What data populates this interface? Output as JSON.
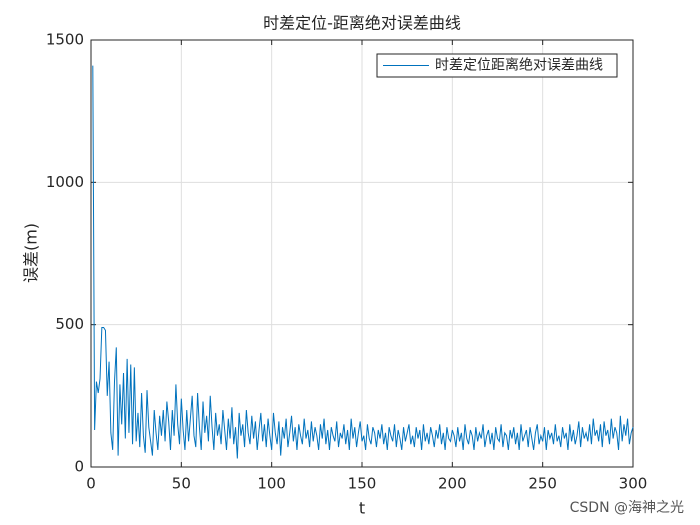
{
  "chart_data": {
    "type": "line",
    "title": "时差定位-距离绝对误差曲线",
    "xlabel": "t",
    "ylabel": "误差(m)",
    "watermark": "CSDN @海神之光",
    "xlim": [
      0,
      300
    ],
    "xticks": [
      0,
      50,
      100,
      150,
      200,
      250,
      300
    ],
    "ylim": [
      0,
      1500
    ],
    "yticks": [
      0,
      500,
      1000,
      1500
    ],
    "grid": true,
    "legend": "northeast",
    "x": [
      1,
      2,
      3,
      4,
      5,
      6,
      7,
      8,
      9,
      10,
      11,
      12,
      13,
      14,
      15,
      16,
      17,
      18,
      19,
      20,
      21,
      22,
      23,
      24,
      25,
      26,
      27,
      28,
      29,
      30,
      31,
      32,
      33,
      34,
      35,
      36,
      37,
      38,
      39,
      40,
      41,
      42,
      43,
      44,
      45,
      46,
      47,
      48,
      49,
      50,
      51,
      52,
      53,
      54,
      55,
      56,
      57,
      58,
      59,
      60,
      61,
      62,
      63,
      64,
      65,
      66,
      67,
      68,
      69,
      70,
      71,
      72,
      73,
      74,
      75,
      76,
      77,
      78,
      79,
      80,
      81,
      82,
      83,
      84,
      85,
      86,
      87,
      88,
      89,
      90,
      91,
      92,
      93,
      94,
      95,
      96,
      97,
      98,
      99,
      100,
      101,
      102,
      103,
      104,
      105,
      106,
      107,
      108,
      109,
      110,
      111,
      112,
      113,
      114,
      115,
      116,
      117,
      118,
      119,
      120,
      121,
      122,
      123,
      124,
      125,
      126,
      127,
      128,
      129,
      130,
      131,
      132,
      133,
      134,
      135,
      136,
      137,
      138,
      139,
      140,
      141,
      142,
      143,
      144,
      145,
      146,
      147,
      148,
      149,
      150,
      151,
      152,
      153,
      154,
      155,
      156,
      157,
      158,
      159,
      160,
      161,
      162,
      163,
      164,
      165,
      166,
      167,
      168,
      169,
      170,
      171,
      172,
      173,
      174,
      175,
      176,
      177,
      178,
      179,
      180,
      181,
      182,
      183,
      184,
      185,
      186,
      187,
      188,
      189,
      190,
      191,
      192,
      193,
      194,
      195,
      196,
      197,
      198,
      199,
      200,
      201,
      202,
      203,
      204,
      205,
      206,
      207,
      208,
      209,
      210,
      211,
      212,
      213,
      214,
      215,
      216,
      217,
      218,
      219,
      220,
      221,
      222,
      223,
      224,
      225,
      226,
      227,
      228,
      229,
      230,
      231,
      232,
      233,
      234,
      235,
      236,
      237,
      238,
      239,
      240,
      241,
      242,
      243,
      244,
      245,
      246,
      247,
      248,
      249,
      250,
      251,
      252,
      253,
      254,
      255,
      256,
      257,
      258,
      259,
      260,
      261,
      262,
      263,
      264,
      265,
      266,
      267,
      268,
      269,
      270,
      271,
      272,
      273,
      274,
      275,
      276,
      277,
      278,
      279,
      280,
      281,
      282,
      283,
      284,
      285,
      286,
      287,
      288,
      289,
      290,
      291,
      292,
      293,
      294,
      295,
      296,
      297,
      298,
      299,
      300
    ],
    "series": [
      {
        "name": "时差定位距离绝对误差曲线",
        "color": "#0072bd",
        "values": [
          1410,
          130,
          300,
          260,
          310,
          490,
          490,
          480,
          250,
          370,
          120,
          60,
          300,
          420,
          40,
          290,
          150,
          330,
          100,
          380,
          120,
          360,
          80,
          350,
          90,
          190,
          70,
          260,
          110,
          50,
          270,
          140,
          90,
          40,
          200,
          120,
          60,
          180,
          110,
          200,
          90,
          230,
          160,
          60,
          200,
          110,
          290,
          150,
          80,
          240,
          130,
          60,
          200,
          90,
          170,
          250,
          110,
          70,
          260,
          140,
          60,
          230,
          120,
          180,
          90,
          250,
          140,
          60,
          190,
          110,
          150,
          80,
          200,
          130,
          60,
          170,
          100,
          210,
          80,
          140,
          30,
          190,
          110,
          150,
          70,
          200,
          120,
          80,
          180,
          100,
          160,
          60,
          130,
          190,
          90,
          150,
          70,
          170,
          110,
          60,
          190,
          120,
          80,
          160,
          40,
          140,
          100,
          170,
          70,
          120,
          180,
          90,
          140,
          60,
          150,
          110,
          80,
          170,
          100,
          130,
          70,
          160,
          90,
          140,
          110,
          60,
          150,
          100,
          170,
          80,
          130,
          60,
          140,
          110,
          90,
          160,
          70,
          120,
          100,
          150,
          80,
          130,
          60,
          170,
          100,
          140,
          70,
          120,
          160,
          90,
          110,
          60,
          150,
          100,
          80,
          140,
          120,
          70,
          130,
          100,
          150,
          80,
          120,
          60,
          140,
          110,
          90,
          150,
          70,
          130,
          100,
          60,
          140,
          90,
          120,
          150,
          80,
          110,
          70,
          140,
          100,
          130,
          60,
          150,
          90,
          120,
          80,
          140,
          110,
          70,
          130,
          100,
          150,
          80,
          120,
          60,
          140,
          100,
          90,
          130,
          110,
          70,
          140,
          90,
          120,
          60,
          150,
          100,
          80,
          130,
          110,
          60,
          140,
          90,
          120,
          100,
          150,
          70,
          110,
          130,
          80,
          120,
          60,
          140,
          100,
          90,
          150,
          70,
          120,
          110,
          60,
          130,
          100,
          140,
          80,
          120,
          60,
          150,
          90,
          110,
          130,
          70,
          140,
          100,
          60,
          120,
          150,
          80,
          110,
          90,
          140,
          60,
          130,
          100,
          120,
          80,
          150,
          90,
          110,
          70,
          140,
          100,
          120,
          60,
          150,
          90,
          130,
          80,
          110,
          160,
          70,
          140,
          100,
          120,
          90,
          150,
          80,
          170,
          110,
          130,
          90,
          150,
          70,
          160,
          110,
          130,
          80,
          170,
          100,
          140,
          120,
          60,
          180,
          90,
          150,
          110,
          170,
          80,
          120,
          140
        ]
      }
    ]
  }
}
